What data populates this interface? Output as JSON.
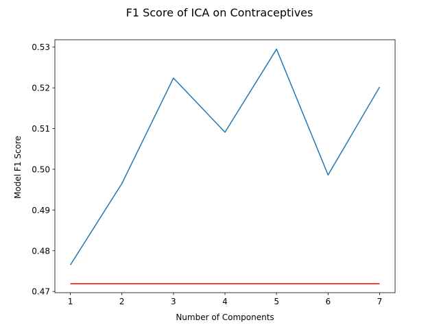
{
  "chart_data": {
    "type": "line",
    "title": "F1 Score of ICA on Contraceptives",
    "xlabel": "Number of Components",
    "ylabel": "Model F1 Score",
    "x": [
      1,
      2,
      3,
      4,
      5,
      6,
      7
    ],
    "xlim": [
      0.7,
      7.3
    ],
    "ylim": [
      0.4697,
      0.5318
    ],
    "x_ticks": [
      1,
      2,
      3,
      4,
      5,
      6,
      7
    ],
    "y_ticks": [
      0.47,
      0.48,
      0.49,
      0.5,
      0.51,
      0.52,
      0.53
    ],
    "y_tick_labels": [
      "0.47",
      "0.48",
      "0.49",
      "0.50",
      "0.51",
      "0.52",
      "0.53"
    ],
    "grid": false,
    "series": [
      {
        "color": "#1f77b4",
        "values": [
          0.4765,
          0.4965,
          0.5224,
          0.5091,
          0.5295,
          0.4986,
          0.5202
        ]
      },
      {
        "color": "#ff0000",
        "values": [
          0.4719,
          0.4719,
          0.4719,
          0.4719,
          0.4719,
          0.4719,
          0.4719
        ]
      }
    ]
  }
}
